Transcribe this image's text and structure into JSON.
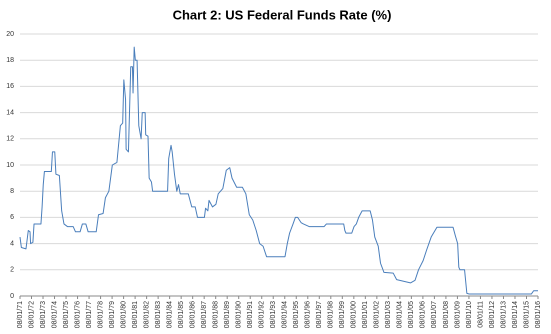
{
  "chart_data": {
    "type": "line",
    "title": "Chart 2: US Federal Funds Rate (%)",
    "x": [
      1971.58,
      1971.7,
      1972.1,
      1972.3,
      1972.45,
      1972.5,
      1972.7,
      1972.8,
      1973.4,
      1973.5,
      1973.6,
      1973.7,
      1974.3,
      1974.4,
      1974.6,
      1974.7,
      1975.0,
      1975.2,
      1975.4,
      1975.7,
      1976.2,
      1976.4,
      1976.8,
      1977.0,
      1977.3,
      1977.5,
      1978.2,
      1978.4,
      1978.8,
      1979.0,
      1979.3,
      1979.6,
      1980.0,
      1980.3,
      1980.5,
      1980.6,
      1980.75,
      1980.8,
      1981.0,
      1981.2,
      1981.35,
      1981.4,
      1981.5,
      1981.6,
      1981.75,
      1981.9,
      1982.1,
      1982.2,
      1982.45,
      1982.5,
      1982.7,
      1982.8,
      1983.0,
      1983.1,
      1984.4,
      1984.5,
      1984.7,
      1984.8,
      1985.0,
      1985.2,
      1985.35,
      1985.5,
      1986.2,
      1986.5,
      1986.8,
      1987.0,
      1987.6,
      1987.7,
      1987.9,
      1988.0,
      1988.3,
      1988.6,
      1988.8,
      1989.2,
      1989.5,
      1989.8,
      1990.0,
      1990.4,
      1990.9,
      1991.2,
      1991.5,
      1991.8,
      1992.1,
      1992.4,
      1992.7,
      1993.0,
      1994.6,
      1994.8,
      1995.0,
      1995.3,
      1995.5,
      1995.7,
      1996.0,
      1996.2,
      1996.7,
      1998.0,
      1998.2,
      1999.7,
      1999.8,
      1999.9,
      2000.4,
      2000.6,
      2000.8,
      2001.0,
      2001.3,
      2002.0,
      2002.2,
      2002.4,
      2002.7,
      2002.9,
      2003.2,
      2004.0,
      2004.3,
      2005.5,
      2005.9,
      2006.2,
      2006.6,
      2006.9,
      2007.3,
      2007.8,
      2009.2,
      2009.4,
      2009.6,
      2009.7,
      2009.8,
      2010.2,
      2010.4,
      2010.6,
      2016.0,
      2016.2,
      2016.58
    ],
    "series": [
      {
        "color": "#4a7ebb",
        "values": [
          4.5,
          3.7,
          3.6,
          5.0,
          4.9,
          4.0,
          4.1,
          5.5,
          5.5,
          6.8,
          8.5,
          9.5,
          9.5,
          11,
          11,
          9.3,
          9.2,
          6.5,
          5.5,
          5.3,
          5.3,
          4.9,
          4.9,
          5.5,
          5.5,
          4.9,
          4.9,
          6.2,
          6.3,
          7.5,
          8.0,
          10,
          10.2,
          13.0,
          13.2,
          16.5,
          15,
          11.2,
          11,
          17.5,
          17.5,
          15.5,
          19,
          18,
          18,
          13,
          12,
          14,
          14,
          12.3,
          12.2,
          9,
          8.7,
          8,
          8,
          10.5,
          11.5,
          11,
          9.3,
          8,
          8.5,
          7.8,
          7.8,
          6.8,
          6.8,
          6,
          6.0,
          6.7,
          6.5,
          7.3,
          6.8,
          7.0,
          7.8,
          8.2,
          9.6,
          9.8,
          9,
          8.3,
          8.3,
          7.8,
          6.2,
          5.8,
          5,
          4,
          3.8,
          3,
          3,
          4,
          4.8,
          5.5,
          6,
          6,
          5.6,
          5.5,
          5.3,
          5.3,
          5.5,
          5.5,
          5,
          4.8,
          4.8,
          5.3,
          5.5,
          6,
          6.5,
          6.5,
          5.8,
          4.5,
          3.8,
          2.5,
          1.8,
          1.75,
          1.25,
          1.0,
          1.2,
          2.0,
          2.7,
          3.5,
          4.5,
          5.25,
          5.25,
          4.6,
          4.0,
          2.2,
          2.0,
          2.0,
          0.2,
          0.15,
          0.15,
          0.4,
          0.4
        ]
      }
    ],
    "xlim": [
      1971.58,
      2016.58
    ],
    "xticks": [
      {
        "value": 1971.58,
        "label": "08/01/71"
      },
      {
        "value": 1972.58,
        "label": "08/01/72"
      },
      {
        "value": 1973.58,
        "label": "08/01/73"
      },
      {
        "value": 1974.58,
        "label": "08/01/74"
      },
      {
        "value": 1975.58,
        "label": "08/01/75"
      },
      {
        "value": 1976.58,
        "label": "08/01/76"
      },
      {
        "value": 1977.58,
        "label": "08/01/77"
      },
      {
        "value": 1978.58,
        "label": "08/01/78"
      },
      {
        "value": 1979.58,
        "label": "08/01/79"
      },
      {
        "value": 1980.58,
        "label": "08/01/80"
      },
      {
        "value": 1981.58,
        "label": "08/01/81"
      },
      {
        "value": 1982.58,
        "label": "08/01/82"
      },
      {
        "value": 1983.58,
        "label": "08/01/83"
      },
      {
        "value": 1984.58,
        "label": "08/01/84"
      },
      {
        "value": 1985.58,
        "label": "08/01/85"
      },
      {
        "value": 1986.58,
        "label": "08/01/86"
      },
      {
        "value": 1987.58,
        "label": "08/01/87"
      },
      {
        "value": 1988.58,
        "label": "08/01/88"
      },
      {
        "value": 1989.58,
        "label": "08/01/89"
      },
      {
        "value": 1990.58,
        "label": "08/01/90"
      },
      {
        "value": 1991.58,
        "label": "08/01/91"
      },
      {
        "value": 1992.58,
        "label": "08/01/92"
      },
      {
        "value": 1993.58,
        "label": "08/01/93"
      },
      {
        "value": 1994.58,
        "label": "08/01/94"
      },
      {
        "value": 1995.58,
        "label": "08/01/95"
      },
      {
        "value": 1996.58,
        "label": "08/01/96"
      },
      {
        "value": 1997.58,
        "label": "08/01/97"
      },
      {
        "value": 1998.58,
        "label": "08/01/98"
      },
      {
        "value": 1999.58,
        "label": "08/01/99"
      },
      {
        "value": 2000.58,
        "label": "08/01/00"
      },
      {
        "value": 2001.58,
        "label": "08/01/01"
      },
      {
        "value": 2002.58,
        "label": "08/01/02"
      },
      {
        "value": 2003.58,
        "label": "08/01/03"
      },
      {
        "value": 2004.58,
        "label": "08/01/04"
      },
      {
        "value": 2005.58,
        "label": "08/01/05"
      },
      {
        "value": 2006.58,
        "label": "08/01/06"
      },
      {
        "value": 2007.58,
        "label": "08/01/07"
      },
      {
        "value": 2008.58,
        "label": "08/01/08"
      },
      {
        "value": 2009.58,
        "label": "08/01/09"
      },
      {
        "value": 2010.58,
        "label": "08/01/10"
      },
      {
        "value": 2011.58,
        "label": "08/01/11"
      },
      {
        "value": 2012.58,
        "label": "08/01/12"
      },
      {
        "value": 2013.58,
        "label": "08/01/13"
      },
      {
        "value": 2014.58,
        "label": "08/01/14"
      },
      {
        "value": 2015.58,
        "label": "08/01/15"
      },
      {
        "value": 2016.58,
        "label": "08/01/16"
      }
    ],
    "ylim": [
      0,
      20
    ],
    "yticks": [
      0,
      2,
      4,
      6,
      8,
      10,
      12,
      14,
      16,
      18,
      20
    ],
    "grid": true
  }
}
